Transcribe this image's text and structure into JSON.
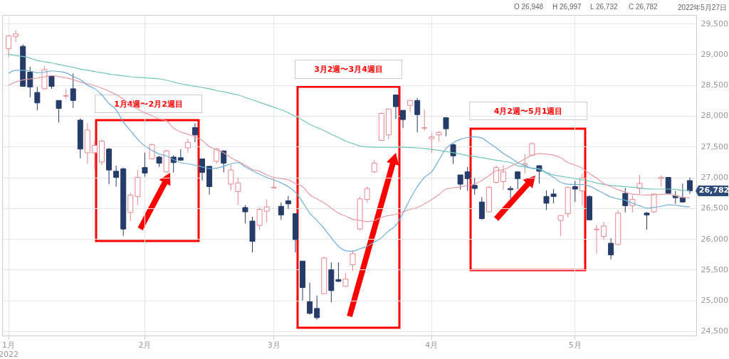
{
  "chart_data": {
    "type": "candlestick",
    "categories": [
      "1月\n2022",
      null,
      null,
      null,
      null,
      null,
      null,
      null,
      null,
      null,
      null,
      null,
      null,
      null,
      null,
      null,
      null,
      null,
      null,
      "2月",
      null,
      null,
      null,
      null,
      null,
      null,
      null,
      null,
      null,
      null,
      null,
      null,
      null,
      null,
      null,
      null,
      null,
      "3月",
      null,
      null,
      null,
      null,
      null,
      null,
      null,
      null,
      null,
      null,
      null,
      null,
      null,
      null,
      null,
      null,
      null,
      null,
      null,
      null,
      null,
      "4月",
      null,
      null,
      null,
      null,
      null,
      null,
      null,
      null,
      null,
      null,
      null,
      null,
      null,
      null,
      null,
      null,
      null,
      null,
      null,
      "5月",
      null,
      null,
      null,
      null,
      null,
      null,
      null,
      null,
      null,
      null,
      null,
      null,
      null,
      null,
      null,
      null
    ],
    "ohlc": [
      [
        29090,
        29310,
        28950,
        29300
      ],
      [
        29290,
        29390,
        29200,
        29330
      ],
      [
        29130,
        29160,
        28480,
        28480
      ],
      [
        28710,
        28800,
        28300,
        28470
      ],
      [
        28380,
        28470,
        28090,
        28210
      ],
      [
        28440,
        28810,
        28430,
        28750
      ],
      [
        28650,
        28650,
        28440,
        28480
      ],
      [
        28250,
        28250,
        27890,
        28120
      ],
      [
        28320,
        28440,
        28270,
        28330
      ],
      [
        28440,
        28690,
        28130,
        28250
      ],
      [
        27930,
        27960,
        27310,
        27460
      ],
      [
        27400,
        27880,
        27220,
        27770
      ],
      [
        27400,
        27590,
        27140,
        27520
      ],
      [
        27250,
        27620,
        27200,
        27590
      ],
      [
        27460,
        27480,
        26890,
        27120
      ],
      [
        27100,
        27190,
        26850,
        27000
      ],
      [
        27140,
        27160,
        26050,
        26160
      ],
      [
        26430,
        26750,
        26290,
        26710
      ],
      [
        26690,
        27120,
        26550,
        27000
      ],
      [
        27160,
        27400,
        27010,
        27070
      ],
      [
        27300,
        27550,
        27290,
        27530
      ],
      [
        27330,
        27350,
        27170,
        27230
      ],
      [
        27090,
        27450,
        27080,
        27430
      ],
      [
        27330,
        27360,
        27080,
        27240
      ],
      [
        27320,
        27460,
        27270,
        27280
      ],
      [
        27480,
        27630,
        27400,
        27570
      ],
      [
        27810,
        27880,
        27570,
        27690
      ],
      [
        27300,
        27300,
        26950,
        27080
      ],
      [
        27180,
        27180,
        26720,
        26850
      ],
      [
        27260,
        27480,
        27220,
        27460
      ],
      [
        27430,
        27440,
        27080,
        27230
      ],
      [
        26890,
        27210,
        26790,
        27120
      ],
      [
        26770,
        27000,
        26550,
        26910
      ],
      [
        26510,
        26550,
        26250,
        26440
      ],
      [
        26290,
        26360,
        25780,
        25960
      ],
      [
        26220,
        26510,
        26150,
        26480
      ],
      [
        26450,
        26640,
        26270,
        26520
      ],
      [
        26830,
        26990,
        26820,
        26840
      ],
      [
        26530,
        26590,
        26310,
        26390
      ],
      [
        26620,
        26700,
        26490,
        26570
      ],
      [
        26410,
        26410,
        25780,
        25990
      ],
      [
        25640,
        25640,
        25000,
        25210
      ],
      [
        24980,
        25290,
        24770,
        24790
      ],
      [
        24870,
        25080,
        24690,
        24720
      ],
      [
        25110,
        25710,
        25100,
        25690
      ],
      [
        25500,
        25620,
        24970,
        25160
      ],
      [
        25340,
        25620,
        25300,
        25310
      ],
      [
        25230,
        25440,
        25220,
        25350
      ],
      [
        25580,
        25820,
        25480,
        25760
      ],
      [
        26160,
        26690,
        26140,
        26650
      ],
      [
        26640,
        26850,
        26590,
        26820
      ],
      [
        27090,
        27280,
        27070,
        27230
      ],
      [
        27600,
        28050,
        27600,
        28040
      ],
      [
        27690,
        28110,
        27620,
        28110
      ],
      [
        28340,
        28340,
        27950,
        28150
      ],
      [
        28090,
        28090,
        27800,
        27940
      ],
      [
        28170,
        28250,
        28060,
        28250
      ],
      [
        28250,
        28290,
        27730,
        28020
      ],
      [
        27800,
        28100,
        27760,
        27810
      ],
      [
        27630,
        27720,
        27400,
        27660
      ],
      [
        27690,
        27750,
        27580,
        27730
      ],
      [
        27970,
        27970,
        27670,
        27790
      ],
      [
        27530,
        27550,
        27220,
        27350
      ],
      [
        27040,
        27040,
        26800,
        26890
      ],
      [
        27090,
        27170,
        26780,
        26980
      ],
      [
        26870,
        26990,
        26720,
        26820
      ],
      [
        26600,
        26680,
        26310,
        26330
      ],
      [
        26440,
        26860,
        26430,
        26840
      ],
      [
        26920,
        27190,
        26900,
        27160
      ],
      [
        26930,
        27200,
        26800,
        27090
      ],
      [
        26820,
        26860,
        26660,
        26800
      ],
      [
        27090,
        27090,
        26810,
        26980
      ],
      [
        27200,
        27380,
        27060,
        27220
      ],
      [
        27360,
        27570,
        27350,
        27550
      ],
      [
        27190,
        27200,
        26900,
        27100
      ],
      [
        26690,
        26790,
        26470,
        26580
      ],
      [
        26730,
        26810,
        26580,
        26690
      ],
      [
        26300,
        26390,
        26050,
        26380
      ],
      [
        26410,
        26850,
        26350,
        26840
      ],
      [
        26850,
        26940,
        26600,
        26810
      ],
      [
        26780,
        27060,
        26540,
        26990
      ],
      [
        26690,
        26710,
        26310,
        26310
      ],
      [
        26150,
        26230,
        25760,
        26160
      ],
      [
        26040,
        26280,
        25990,
        26210
      ],
      [
        25930,
        26010,
        25670,
        25740
      ],
      [
        25910,
        26470,
        25900,
        26420
      ],
      [
        26740,
        26830,
        26430,
        26540
      ],
      [
        26540,
        26710,
        26430,
        26640
      ],
      [
        26820,
        27040,
        26730,
        26900
      ],
      [
        26420,
        26440,
        26150,
        26390
      ],
      [
        26440,
        26740,
        26420,
        26730
      ],
      [
        26980,
        27030,
        26850,
        27000
      ],
      [
        27000,
        27000,
        26720,
        26740
      ],
      [
        26700,
        26780,
        26570,
        26670
      ],
      [
        26670,
        26900,
        26590,
        26600
      ],
      [
        26948,
        26997,
        26732,
        26782
      ]
    ],
    "colors": [
      "#e8858e",
      "#e8858e",
      "#253c69",
      "#253c69",
      "#253c69",
      "#e8858e",
      "#253c69",
      "#253c69",
      "#e8858e",
      "#253c69",
      "#253c69",
      "#e8858e",
      "#e8858e",
      "#e8858e",
      "#253c69",
      "#253c69",
      "#253c69",
      "#e8858e",
      "#e8858e",
      "#253c69",
      "#e8858e",
      "#253c69",
      "#e8858e",
      "#253c69",
      "#253c69",
      "#e8858e",
      "#253c69",
      "#253c69",
      "#253c69",
      "#e8858e",
      "#253c69",
      "#e8858e",
      "#e8858e",
      "#253c69",
      "#253c69",
      "#e8858e",
      "#e8858e",
      "#e8858e",
      "#253c69",
      "#253c69",
      "#253c69",
      "#253c69",
      "#253c69",
      "#253c69",
      "#e8858e",
      "#253c69",
      "#253c69",
      "#e8858e",
      "#e8858e",
      "#e8858e",
      "#e8858e",
      "#e8858e",
      "#e8858e",
      "#e8858e",
      "#253c69",
      "#253c69",
      "#e8858e",
      "#253c69",
      "#e8858e",
      "#e8858e",
      "#e8858e",
      "#253c69",
      "#253c69",
      "#253c69",
      "#253c69",
      "#253c69",
      "#253c69",
      "#e8858e",
      "#e8858e",
      "#e8858e",
      "#253c69",
      "#253c69",
      "#e8858e",
      "#e8858e",
      "#253c69",
      "#253c69",
      "#253c69",
      "#e8858e",
      "#e8858e",
      "#253c69",
      "#e8858e",
      "#253c69",
      "#e8858e",
      "#e8858e",
      "#253c69",
      "#e8858e",
      "#253c69",
      "#e8858e",
      "#e8858e",
      "#253c69",
      "#e8858e",
      "#e8858e",
      "#253c69",
      "#253c69",
      "#253c69",
      "#253c69"
    ],
    "series": [
      {
        "type": "line",
        "color": "#72c6b6",
        "values": [
          29000,
          28980,
          28965,
          28940,
          28900,
          28880,
          28860,
          28835,
          28810,
          28790,
          28760,
          28740,
          28720,
          28700,
          28680,
          28665,
          28650,
          28635,
          28625,
          28620,
          28610,
          28600,
          28580,
          28550,
          28520,
          28500,
          28480,
          28460,
          28440,
          28410,
          28390,
          28365,
          28340,
          28300,
          28260,
          28220,
          28180,
          28140,
          28100,
          28050,
          27990,
          27930,
          27860,
          27810,
          27760,
          27700,
          27650,
          27590,
          27550,
          27510,
          27495,
          27490,
          27490,
          27490,
          27490,
          27490,
          27485,
          27480,
          27470,
          27455,
          27440,
          27420,
          27400,
          27380,
          27355,
          27340,
          27320,
          27300,
          27280,
          27260,
          27240,
          27190,
          27170,
          27150,
          27140,
          27080,
          27040,
          27020,
          27000,
          26980,
          26960,
          26940,
          26910,
          26885,
          26870,
          26860,
          26850,
          26840,
          26830,
          26815,
          26810,
          26810,
          26810,
          26805,
          26790,
          26785
        ]
      },
      {
        "type": "line",
        "color": "#e99aa6",
        "values": [
          28500,
          28550,
          28585,
          28600,
          28615,
          28635,
          28654,
          28640,
          28620,
          28590,
          28550,
          28520,
          28490,
          28450,
          28400,
          28345,
          28270,
          28180,
          28110,
          28050,
          28000,
          27950,
          27920,
          27800,
          27740,
          27700,
          27660,
          27600,
          27500,
          27450,
          27400,
          27320,
          27260,
          27200,
          27130,
          27100,
          27040,
          27000,
          26980,
          26960,
          26900,
          26850,
          26720,
          26650,
          26585,
          26500,
          26420,
          26370,
          26320,
          26300,
          26280,
          26300,
          26350,
          26380,
          26400,
          26440,
          26480,
          26510,
          26570,
          26640,
          26720,
          26810,
          26830,
          26846,
          26870,
          26892,
          26950,
          27030,
          27110,
          27123,
          27180,
          27238,
          27300,
          27360,
          27385,
          27380,
          27360,
          27320,
          27240,
          27200,
          27150,
          27060,
          26990,
          26900,
          26850,
          26800,
          26760,
          26730,
          26719,
          26712,
          26715,
          26725,
          26730,
          26700,
          26675,
          26670
        ]
      },
      {
        "type": "line",
        "color": "#6eaedb",
        "values": [
          28690,
          28740,
          28740,
          28730,
          28700,
          28710,
          28730,
          28720,
          28700,
          28640,
          28590,
          28500,
          28440,
          28340,
          28200,
          28100,
          27900,
          27760,
          27620,
          27510,
          27440,
          27380,
          27350,
          27290,
          27240,
          27220,
          27200,
          27170,
          27145,
          27150,
          27180,
          27220,
          27240,
          27170,
          27110,
          27050,
          27000,
          26960,
          26910,
          26850,
          26760,
          26600,
          26420,
          26300,
          26170,
          26020,
          25880,
          25810,
          25800,
          25840,
          25880,
          25950,
          26020,
          26130,
          26220,
          26420,
          26650,
          26850,
          27000,
          27090,
          27280,
          27470,
          27560,
          27620,
          27650,
          27660,
          27640,
          27560,
          27480,
          27390,
          27320,
          27240,
          27190,
          27150,
          27130,
          27070,
          27000,
          26920,
          26890,
          26885,
          26885,
          26860,
          26800,
          26740,
          26680,
          26650,
          26630,
          26580,
          26540,
          26500,
          26510,
          26530,
          26555,
          26550,
          26530,
          26520
        ]
      }
    ],
    "ylim": [
      24430,
      29640
    ],
    "yticks": [
      {
        "value": 24500,
        "label": "24,500"
      },
      {
        "value": 25000,
        "label": "25,000"
      },
      {
        "value": 25500,
        "label": "25,500"
      },
      {
        "value": 26000,
        "label": "26,000"
      },
      {
        "value": 26500,
        "label": "26,500"
      },
      {
        "value": 27000,
        "label": "27,000"
      },
      {
        "value": 27500,
        "label": "27,500"
      },
      {
        "value": 28000,
        "label": "28,000"
      },
      {
        "value": 28500,
        "label": "28,500"
      },
      {
        "value": 29000,
        "label": "29,000"
      },
      {
        "value": 29500,
        "label": "29,500"
      }
    ],
    "grid": true,
    "annotations": [
      "1月4週〜2月2週目",
      "3月2週〜3月4週目",
      "4月2週〜5月1週目",
      "O 26,948",
      "H 26,997",
      "L 26,732",
      "C 26,782",
      "2022年5月27日",
      "26,782"
    ]
  }
}
